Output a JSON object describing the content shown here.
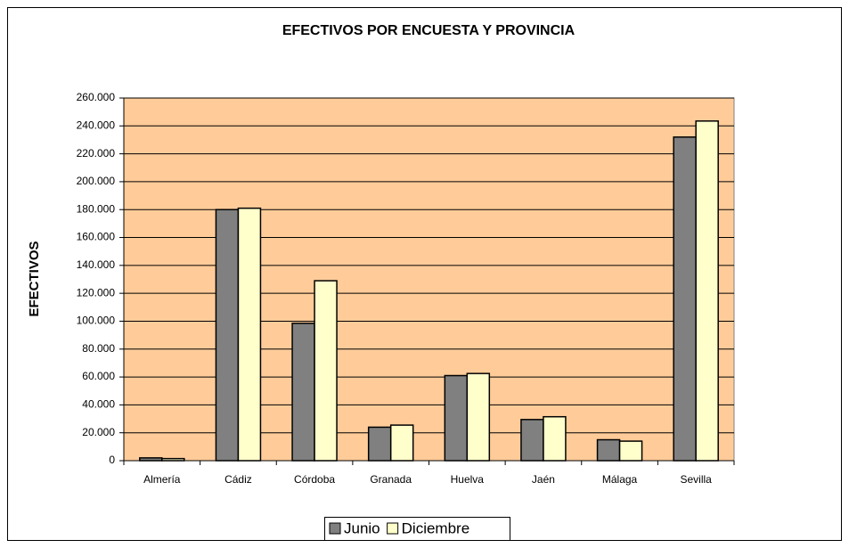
{
  "chart_data": {
    "type": "bar",
    "title": "EFECTIVOS  POR ENCUESTA Y PROVINCIA",
    "y_label": "EFECTIVOS",
    "categories": [
      "Almería",
      "Cádiz",
      "Córdoba",
      "Granada",
      "Huelva",
      "Jaén",
      "Málaga",
      "Sevilla"
    ],
    "series": [
      {
        "name": "Junio",
        "color": "#808080",
        "values": [
          2000,
          180000,
          98500,
          24000,
          61000,
          29500,
          15000,
          232000
        ]
      },
      {
        "name": "Diciembre",
        "color": "#ffffcc",
        "values": [
          1500,
          181000,
          129000,
          25500,
          62500,
          31500,
          14000,
          243500
        ]
      }
    ],
    "ylim": [
      0,
      260000
    ],
    "yticks": [
      0,
      {
        "value": 20000,
        "label": "20.000"
      },
      {
        "value": 40000,
        "label": "40.000"
      },
      {
        "value": 60000,
        "label": "60.000"
      },
      {
        "value": 80000,
        "label": "80.000"
      },
      {
        "value": 100000,
        "label": "100.000"
      },
      {
        "value": 120000,
        "label": "120.000"
      },
      {
        "value": 140000,
        "label": "140.000"
      },
      {
        "value": 160000,
        "label": "160.000"
      },
      {
        "value": 180000,
        "label": "180.000"
      },
      {
        "value": 200000,
        "label": "200.000"
      },
      {
        "value": 220000,
        "label": "220.000"
      },
      {
        "value": 240000,
        "label": "240.000"
      },
      {
        "value": 260000,
        "label": "260.000"
      }
    ],
    "grid": true,
    "plot_background": "#ffcc99",
    "legend": "bottom"
  }
}
